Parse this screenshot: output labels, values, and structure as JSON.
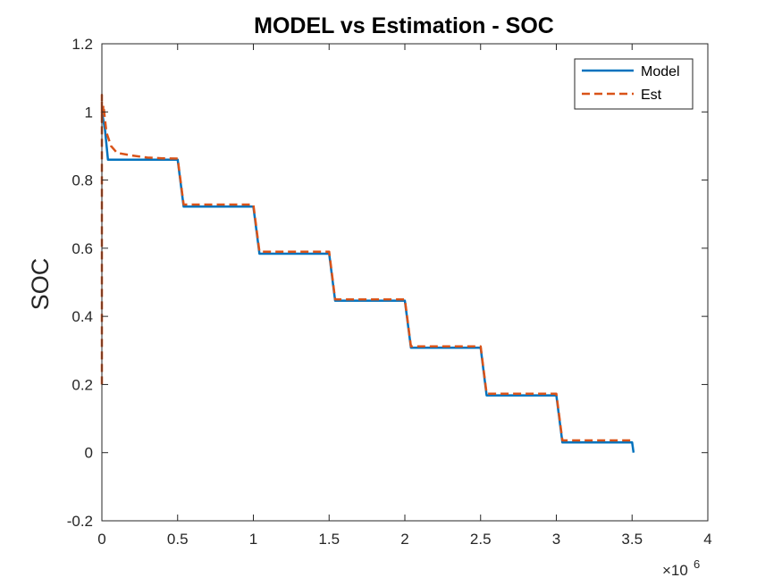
{
  "chart_data": {
    "type": "line",
    "title": "MODEL vs Estimation - SOC",
    "xlabel": "",
    "ylabel": "SOC",
    "xlim": [
      0,
      4000000
    ],
    "ylim": [
      -0.2,
      1.2
    ],
    "x_exponent_label": "×10",
    "x_exponent_power": "6",
    "x_ticks": [
      0,
      500000,
      1000000,
      1500000,
      2000000,
      2500000,
      3000000,
      3500000,
      4000000
    ],
    "x_tick_labels": [
      "0",
      "0.5",
      "1",
      "1.5",
      "2",
      "2.5",
      "3",
      "3.5",
      "4"
    ],
    "y_ticks": [
      -0.2,
      0,
      0.2,
      0.4,
      0.6,
      0.8,
      1,
      1.2
    ],
    "y_tick_labels": [
      "-0.2",
      "0",
      "0.2",
      "0.4",
      "0.6",
      "0.8",
      "1",
      "1.2"
    ],
    "grid": false,
    "legend_position": "top-right",
    "series": [
      {
        "name": "Model",
        "color": "#0072BD",
        "style": "solid",
        "x": [
          0,
          20000,
          40000,
          500000,
          540000,
          1000000,
          1040000,
          1500000,
          1540000,
          2000000,
          2040000,
          2500000,
          2540000,
          3000000,
          3040000,
          3500000,
          3510000
        ],
        "y": [
          1.0,
          0.95,
          0.86,
          0.86,
          0.722,
          0.722,
          0.584,
          0.584,
          0.446,
          0.446,
          0.308,
          0.308,
          0.168,
          0.168,
          0.03,
          0.03,
          0.0
        ]
      },
      {
        "name": "Est",
        "color": "#D95319",
        "style": "dashed",
        "x": [
          0,
          0,
          0,
          10000,
          30000,
          60000,
          100000,
          200000,
          300000,
          400000,
          500000,
          540000,
          1000000,
          1040000,
          1500000,
          1540000,
          2000000,
          2040000,
          2500000,
          2540000,
          3000000,
          3040000,
          3500000,
          3510000
        ],
        "y": [
          0.2,
          1.05,
          0.97,
          1.02,
          0.94,
          0.9,
          0.88,
          0.872,
          0.866,
          0.864,
          0.863,
          0.728,
          0.728,
          0.59,
          0.59,
          0.45,
          0.45,
          0.312,
          0.312,
          0.173,
          0.173,
          0.036,
          0.036,
          0.03
        ]
      }
    ]
  }
}
